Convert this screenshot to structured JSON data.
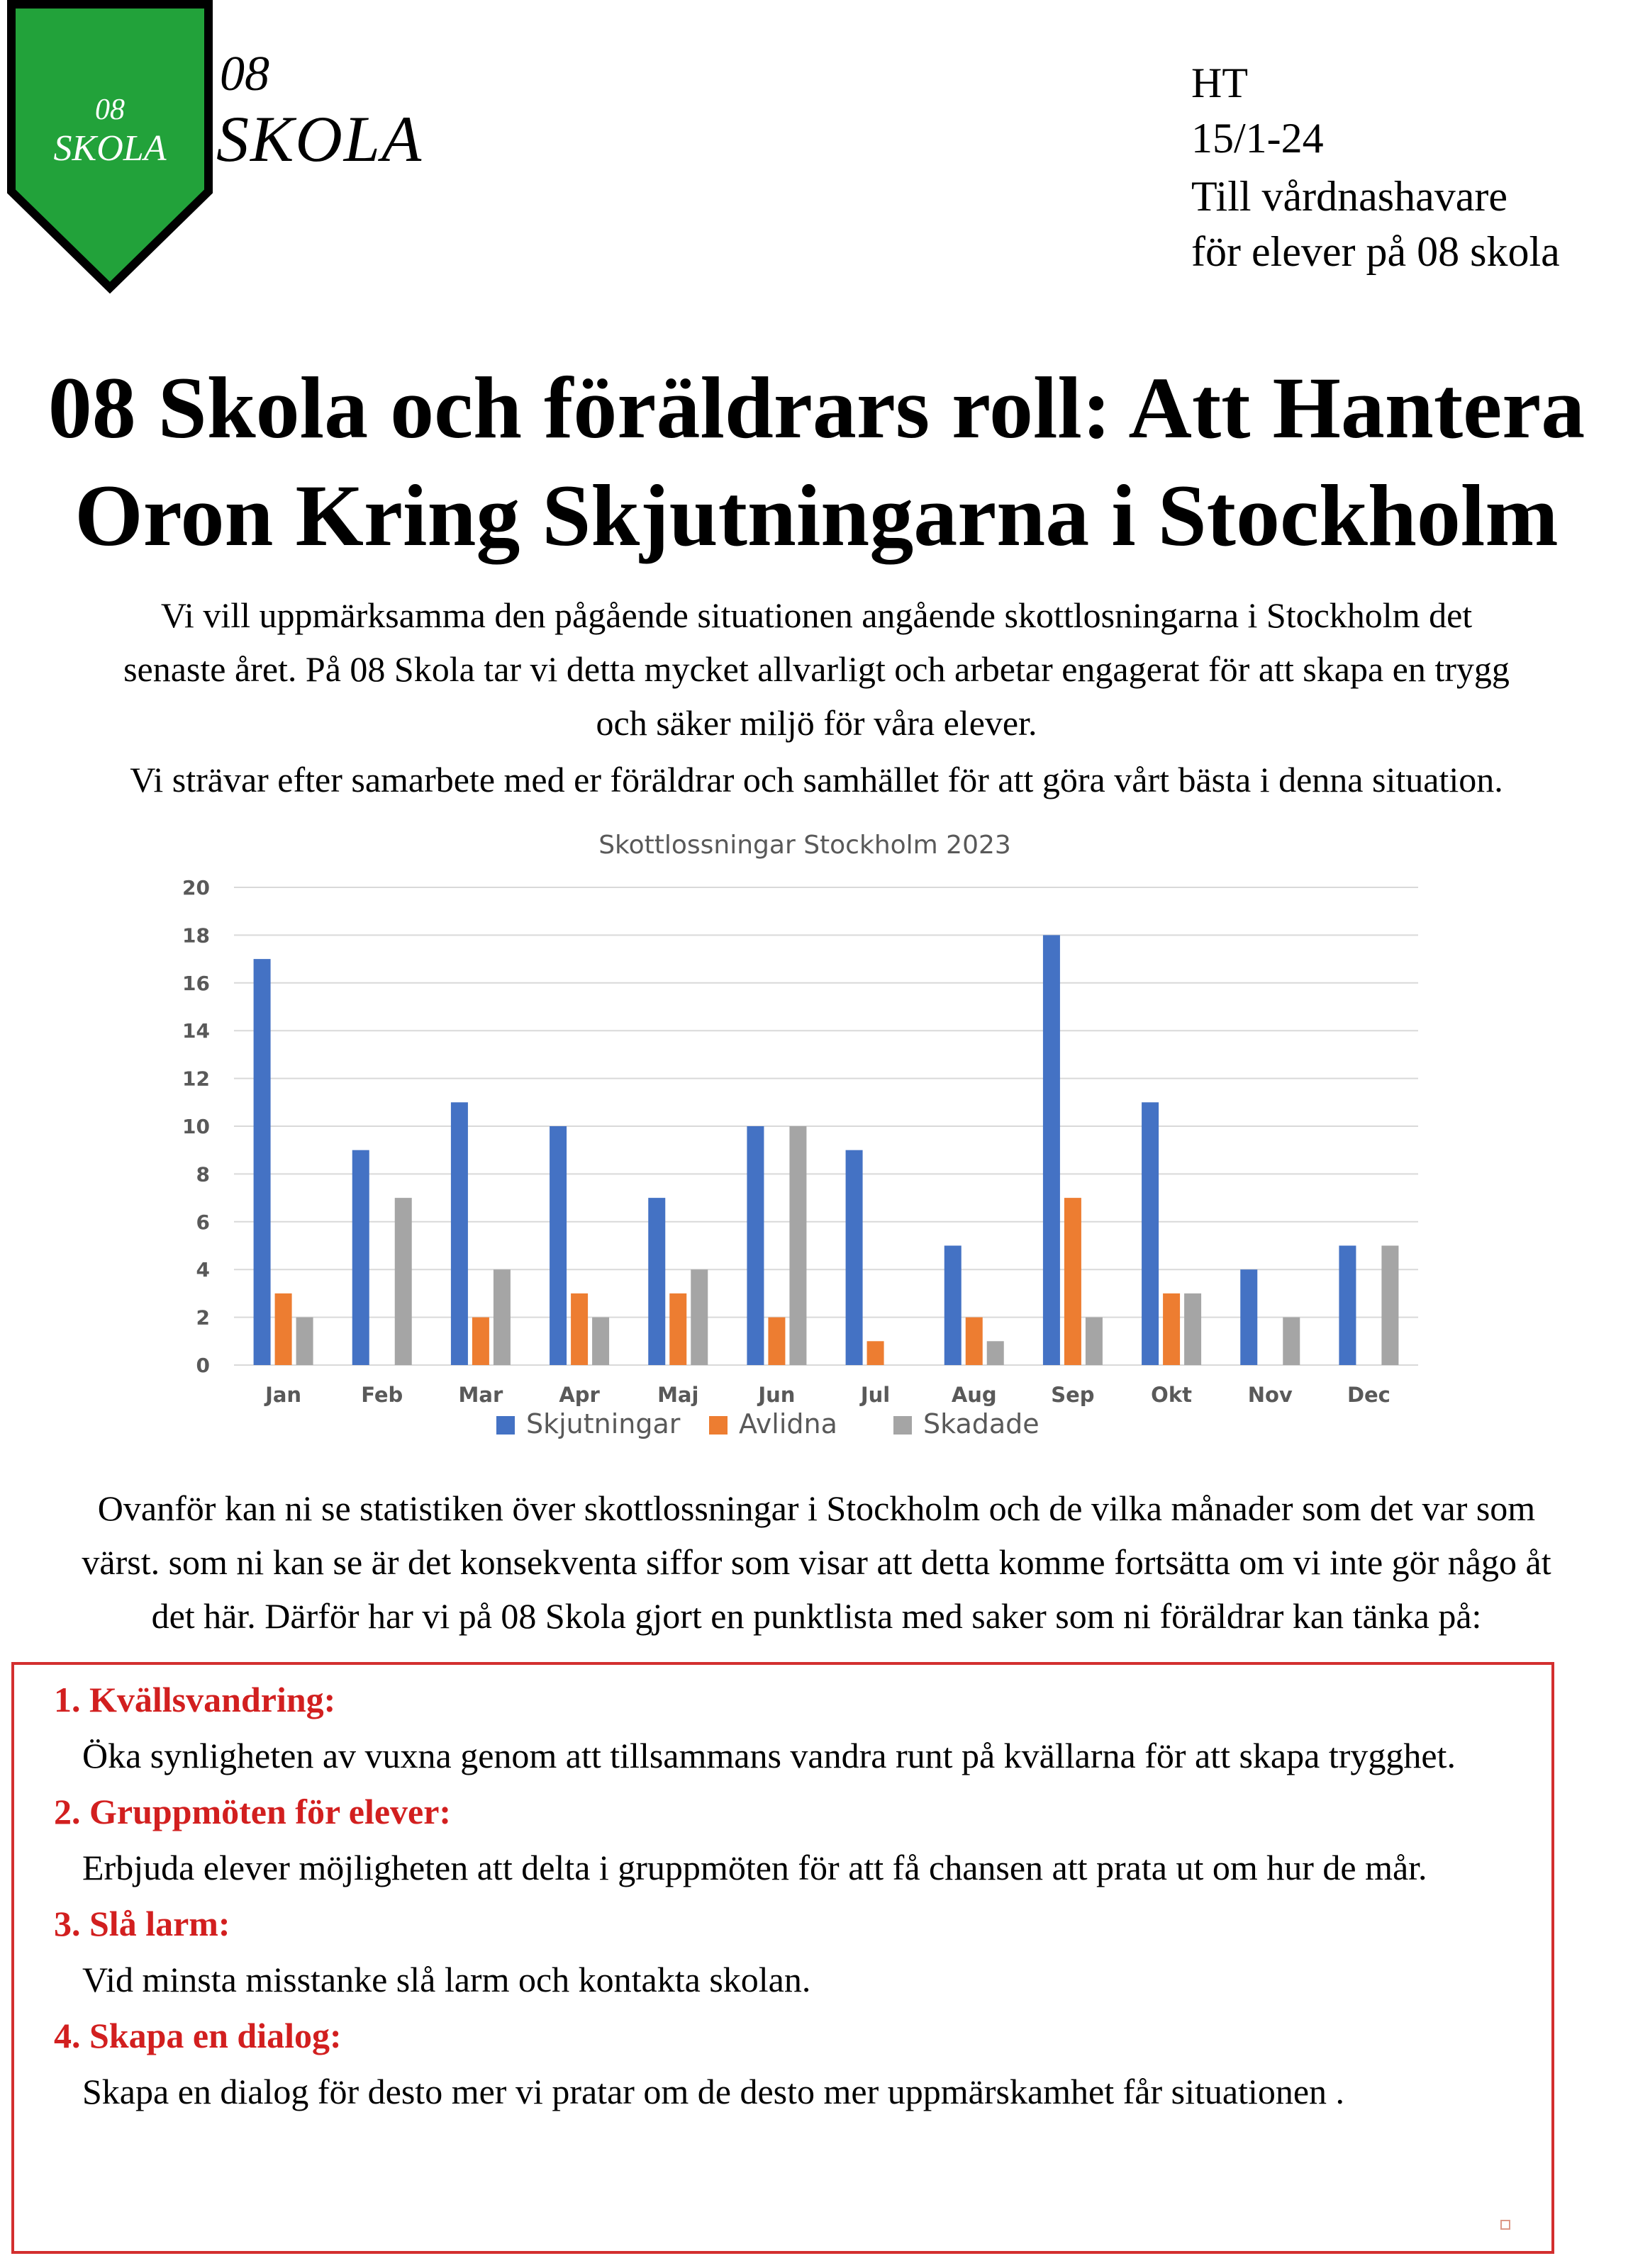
{
  "logo": {
    "badge_line1": "08",
    "badge_line2": "SKOLA",
    "text_line1": "08",
    "text_line2": "SKOLA",
    "shield_color": "#22a23a"
  },
  "header": {
    "initials": "HT",
    "date": "15/1-24",
    "recipient_line1": "Till vårdnashavare",
    "recipient_line2": "för elever på 08 skola"
  },
  "title": {
    "line1": "08 Skola och föräldrars roll: Att Hantera",
    "line2": "Oron Kring Skjutningarna i Stockholm"
  },
  "intro": {
    "line1": "Vi vill uppmärksamma den pågående situationen angående skottlosningarna i Stockholm det",
    "line2": "senaste året. På 08 Skola tar vi detta mycket allvarligt och arbetar engagerat för att skapa en trygg",
    "line3": "och säker miljö för våra elever.",
    "line4": "Vi strävar efter samarbete med er föräldrar och samhället för att göra vårt bästa i denna situation."
  },
  "chart_data": {
    "type": "bar",
    "title": "Skottlossningar Stockholm 2023",
    "categories": [
      "Jan",
      "Feb",
      "Mar",
      "Apr",
      "Maj",
      "Jun",
      "Jul",
      "Aug",
      "Sep",
      "Okt",
      "Nov",
      "Dec"
    ],
    "series": [
      {
        "name": "Skjutningar",
        "color": "#4472c4",
        "values": [
          17,
          9,
          11,
          10,
          7,
          10,
          9,
          5,
          18,
          11,
          4,
          5
        ]
      },
      {
        "name": "Avlidna",
        "color": "#ed7d31",
        "values": [
          3,
          0,
          2,
          3,
          3,
          2,
          1,
          2,
          7,
          3,
          0,
          0
        ]
      },
      {
        "name": "Skadade",
        "color": "#a5a5a5",
        "values": [
          2,
          7,
          4,
          2,
          4,
          10,
          0,
          1,
          2,
          3,
          2,
          5
        ]
      }
    ],
    "yticks": [
      "0",
      "2",
      "4",
      "6",
      "8",
      "10",
      "12",
      "14",
      "16",
      "18",
      "20"
    ],
    "ylim": [
      0,
      20
    ],
    "grid": true,
    "legend": "bottom"
  },
  "description": {
    "line1": "Ovanför kan ni se statistiken över skottlossningar i Stockholm och de vilka månader som det var som",
    "line2": "värst. som ni kan se är det konsekventa siffor som visar att detta komme fortsätta om vi inte gör någo åt",
    "line3": "det här. Därför har vi på 08 Skola gjort en punktlista med saker som ni föräldrar kan tänka på:"
  },
  "checklist": {
    "items": [
      {
        "heading": "1. Kvällsvandring:",
        "body": "Öka synligheten av vuxna genom att tillsammans vandra runt på kvällarna för att skapa trygghet."
      },
      {
        "heading": "2. Gruppmöten för elever:",
        "body": "Erbjuda elever möjligheten att delta i gruppmöten för att få chansen att prata ut om hur de mår."
      },
      {
        "heading": "3. Slå larm:",
        "body": "Vid minsta misstanke slå larm och kontakta skolan."
      },
      {
        "heading": "4. Skapa en dialog:",
        "body": "Skapa  en dialog för desto mer vi pratar om de desto mer uppmärskamhet får situationen ."
      }
    ]
  }
}
